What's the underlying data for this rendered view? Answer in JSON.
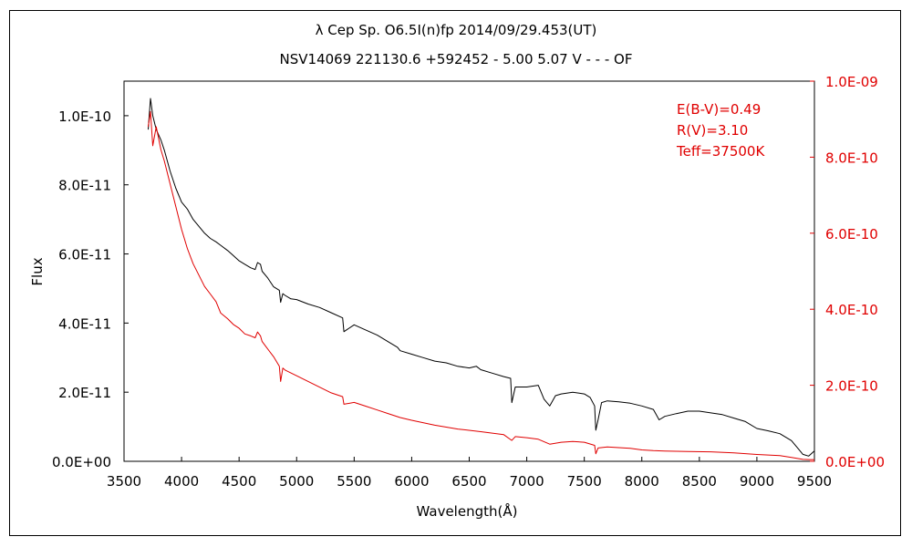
{
  "chart_data": {
    "type": "line",
    "title": "λ Cep   Sp. O6.5I(n)fp   2014/09/29.453(UT)",
    "subtitle": "NSV14069 221130.6 +592452 - 5.00 5.07 V - - - OF",
    "xlabel": "Wavelength(Å)",
    "ylabel": "Flux",
    "xlim": [
      3500,
      9500
    ],
    "ylim": [
      0,
      1.1e-10
    ],
    "y2lim": [
      0,
      1e-09
    ],
    "x_ticks": [
      3500,
      4000,
      4500,
      5000,
      5500,
      6000,
      6500,
      7000,
      7500,
      8000,
      8500,
      9000,
      9500
    ],
    "y_ticks": [
      0,
      2e-11,
      4e-11,
      6e-11,
      8e-11,
      1e-10
    ],
    "y_tick_labels": [
      "0.0E+00",
      "2.0E-11",
      "4.0E-11",
      "6.0E-11",
      "8.0E-11",
      "1.0E-10"
    ],
    "y2_ticks": [
      0,
      2e-10,
      4e-10,
      6e-10,
      8e-10,
      1e-09
    ],
    "y2_tick_labels": [
      "0.0E+00",
      "2.0E-10",
      "4.0E-10",
      "6.0E-10",
      "8.0E-10",
      "1.0E-09"
    ],
    "annotations": [
      "E(B-V)=0.49",
      "R(V)=3.10",
      "Teff=37500K"
    ],
    "grid": false,
    "series": [
      {
        "axis": "left",
        "color": "#000000",
        "x": [
          3710,
          3730,
          3750,
          3780,
          3820,
          3850,
          3900,
          3950,
          4000,
          4050,
          4100,
          4150,
          4200,
          4250,
          4300,
          4340,
          4400,
          4450,
          4500,
          4550,
          4600,
          4640,
          4660,
          4686,
          4700,
          4750,
          4800,
          4850,
          4861,
          4880,
          4900,
          4950,
          5000,
          5100,
          5200,
          5300,
          5400,
          5411,
          5500,
          5600,
          5700,
          5800,
          5876,
          5900,
          6000,
          6100,
          6200,
          6300,
          6400,
          6500,
          6563,
          6600,
          6700,
          6800,
          6860,
          6870,
          6900,
          7000,
          7100,
          7150,
          7200,
          7250,
          7300,
          7400,
          7500,
          7550,
          7590,
          7600,
          7620,
          7650,
          7700,
          7800,
          7900,
          8000,
          8100,
          8150,
          8200,
          8300,
          8400,
          8500,
          8600,
          8700,
          8800,
          8900,
          9000,
          9100,
          9200,
          9300,
          9350,
          9400,
          9450,
          9500
        ],
        "y": [
          9.6e-11,
          1.05e-10,
          1e-10,
          9.6e-11,
          9.3e-11,
          9e-11,
          8.4e-11,
          7.9e-11,
          7.5e-11,
          7.3e-11,
          7e-11,
          6.8e-11,
          6.6e-11,
          6.45e-11,
          6.35e-11,
          6.25e-11,
          6.1e-11,
          5.95e-11,
          5.8e-11,
          5.7e-11,
          5.6e-11,
          5.55e-11,
          5.75e-11,
          5.7e-11,
          5.5e-11,
          5.3e-11,
          5.05e-11,
          4.95e-11,
          4.6e-11,
          4.85e-11,
          4.8e-11,
          4.7e-11,
          4.68e-11,
          4.55e-11,
          4.45e-11,
          4.3e-11,
          4.15e-11,
          3.75e-11,
          3.95e-11,
          3.8e-11,
          3.65e-11,
          3.45e-11,
          3.3e-11,
          3.2e-11,
          3.1e-11,
          3e-11,
          2.9e-11,
          2.85e-11,
          2.75e-11,
          2.7e-11,
          2.75e-11,
          2.65e-11,
          2.55e-11,
          2.45e-11,
          2.4e-11,
          1.7e-11,
          2.15e-11,
          2.15e-11,
          2.2e-11,
          1.8e-11,
          1.6e-11,
          1.9e-11,
          1.95e-11,
          2e-11,
          1.95e-11,
          1.85e-11,
          1.6e-11,
          9e-12,
          1.2e-11,
          1.7e-11,
          1.75e-11,
          1.72e-11,
          1.68e-11,
          1.6e-11,
          1.5e-11,
          1.2e-11,
          1.3e-11,
          1.38e-11,
          1.45e-11,
          1.45e-11,
          1.4e-11,
          1.35e-11,
          1.25e-11,
          1.15e-11,
          9.5e-12,
          8.8e-12,
          8e-12,
          6e-12,
          4e-12,
          2e-12,
          1.5e-12,
          3e-12
        ]
      },
      {
        "axis": "right",
        "color": "#e00000",
        "x": [
          3710,
          3730,
          3750,
          3780,
          3820,
          3850,
          3900,
          3950,
          4000,
          4050,
          4100,
          4150,
          4200,
          4250,
          4300,
          4340,
          4400,
          4450,
          4500,
          4550,
          4600,
          4640,
          4660,
          4686,
          4700,
          4750,
          4800,
          4850,
          4861,
          4880,
          4900,
          5000,
          5100,
          5200,
          5300,
          5400,
          5411,
          5500,
          5600,
          5700,
          5800,
          5900,
          6000,
          6200,
          6400,
          6600,
          6800,
          6870,
          6900,
          7000,
          7100,
          7200,
          7300,
          7400,
          7500,
          7590,
          7600,
          7620,
          7700,
          7800,
          7900,
          8000,
          8100,
          8200,
          8400,
          8600,
          8800,
          9000,
          9200,
          9300,
          9400,
          9500
        ],
        "y": [
          8.8e-10,
          9.2e-10,
          8.3e-10,
          8.8e-10,
          8.2e-10,
          7.9e-10,
          7.3e-10,
          6.7e-10,
          6.1e-10,
          5.6e-10,
          5.2e-10,
          4.9e-10,
          4.6e-10,
          4.4e-10,
          4.2e-10,
          3.9e-10,
          3.75e-10,
          3.6e-10,
          3.5e-10,
          3.35e-10,
          3.3e-10,
          3.25e-10,
          3.4e-10,
          3.3e-10,
          3.15e-10,
          2.95e-10,
          2.75e-10,
          2.5e-10,
          2.1e-10,
          2.45e-10,
          2.4e-10,
          2.25e-10,
          2.1e-10,
          1.95e-10,
          1.8e-10,
          1.7e-10,
          1.5e-10,
          1.55e-10,
          1.45e-10,
          1.35e-10,
          1.25e-10,
          1.15e-10,
          1.08e-10,
          9.5e-11,
          8.5e-11,
          7.8e-11,
          7e-11,
          5.5e-11,
          6.5e-11,
          6.2e-11,
          5.8e-11,
          4.5e-11,
          5e-11,
          5.2e-11,
          5e-11,
          4.2e-11,
          2e-11,
          3.5e-11,
          3.8e-11,
          3.6e-11,
          3.4e-11,
          3e-11,
          2.8e-11,
          2.7e-11,
          2.6e-11,
          2.5e-11,
          2.2e-11,
          1.8e-11,
          1.5e-11,
          1e-11,
          5e-12,
          4e-12
        ]
      }
    ]
  }
}
